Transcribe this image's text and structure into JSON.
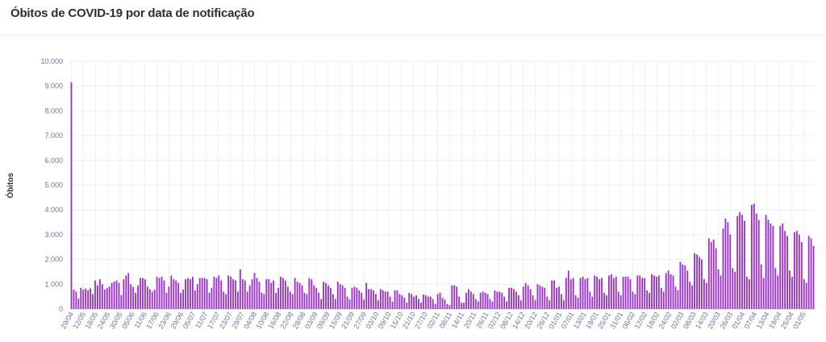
{
  "header": {
    "title": "Óbitos de COVID-19 por data de notificação"
  },
  "colors": {
    "bar": "#9b2fc9",
    "grid": "#eceff4",
    "axis": "#b9c2d0",
    "tick_text": "#6a7a96"
  },
  "chart_data": {
    "type": "bar",
    "title": "Óbitos de COVID-19 por data de notificação",
    "xlabel": "",
    "ylabel": "Óbitos",
    "ylim": [
      0,
      10000
    ],
    "yticks": [
      "0",
      "1.000",
      "2.000",
      "3.000",
      "4.000",
      "5.000",
      "6.000",
      "7.000",
      "8.000",
      "9.000",
      "10.000"
    ],
    "ytick_values": [
      0,
      1000,
      2000,
      3000,
      4000,
      5000,
      6000,
      7000,
      8000,
      9000,
      10000
    ],
    "grid": true,
    "legend": "none",
    "x_tick_labels": [
      "29/04",
      "12/05",
      "18/05",
      "24/05",
      "30/05",
      "05/06",
      "11/06",
      "17/06",
      "23/06",
      "29/06",
      "05/07",
      "11/07",
      "17/07",
      "23/07",
      "29/07",
      "04/08",
      "10/08",
      "16/08",
      "22/08",
      "28/08",
      "03/09",
      "09/09",
      "15/09",
      "21/09",
      "27/09",
      "03/10",
      "09/10",
      "15/10",
      "21/10",
      "27/10",
      "02/11",
      "08/11",
      "14/11",
      "20/11",
      "26/11",
      "02/12",
      "08/12",
      "14/12",
      "20/12",
      "26/12",
      "01/01",
      "07/01",
      "13/01",
      "19/01",
      "25/01",
      "31/01",
      "06/02",
      "12/02",
      "18/02",
      "24/02",
      "02/03",
      "08/03",
      "14/03",
      "20/03",
      "26/03",
      "01/04",
      "07/04",
      "13/04",
      "19/04",
      "25/04",
      "01/05"
    ],
    "values": [
      9150,
      780,
      700,
      420,
      850,
      780,
      820,
      750,
      830,
      600,
      1150,
      950,
      1200,
      1000,
      780,
      850,
      900,
      1050,
      1100,
      1150,
      1050,
      560,
      1200,
      1350,
      1450,
      1000,
      880,
      650,
      950,
      1250,
      1250,
      1200,
      900,
      800,
      700,
      780,
      1300,
      1250,
      1300,
      1150,
      650,
      900,
      1350,
      1200,
      1150,
      1050,
      650,
      780,
      1200,
      1250,
      1200,
      1300,
      750,
      1000,
      1250,
      1250,
      1250,
      1200,
      650,
      850,
      1300,
      1250,
      1350,
      1150,
      700,
      600,
      1350,
      1300,
      1200,
      1150,
      700,
      1600,
      1200,
      1150,
      700,
      950,
      1200,
      1450,
      1250,
      1100,
      650,
      600,
      1200,
      1200,
      1050,
      1150,
      650,
      850,
      1300,
      1250,
      1150,
      900,
      700,
      600,
      1250,
      1100,
      1050,
      950,
      650,
      600,
      1250,
      1200,
      950,
      850,
      650,
      400,
      1100,
      1050,
      950,
      850,
      600,
      400,
      1100,
      1000,
      950,
      850,
      500,
      380,
      850,
      900,
      850,
      750,
      650,
      380,
      1050,
      800,
      800,
      750,
      600,
      350,
      800,
      750,
      700,
      700,
      500,
      300,
      750,
      750,
      600,
      550,
      450,
      250,
      650,
      600,
      500,
      550,
      400,
      250,
      580,
      550,
      500,
      500,
      400,
      200,
      600,
      650,
      450,
      380,
      200,
      150,
      950,
      950,
      900,
      500,
      250,
      250,
      650,
      800,
      700,
      600,
      400,
      300,
      650,
      700,
      650,
      600,
      400,
      300,
      750,
      700,
      700,
      650,
      500,
      300,
      850,
      850,
      800,
      700,
      550,
      350,
      900,
      1050,
      950,
      800,
      550,
      350,
      1000,
      950,
      900,
      850,
      500,
      350,
      1150,
      1150,
      850,
      900,
      600,
      350,
      1250,
      1550,
      1200,
      1250,
      550,
      450,
      1250,
      1300,
      1200,
      1250,
      700,
      500,
      1350,
      1300,
      1200,
      1250,
      650,
      550,
      1350,
      1400,
      1250,
      1300,
      700,
      550,
      1300,
      1300,
      1300,
      1200,
      700,
      600,
      1350,
      1350,
      1250,
      1250,
      750,
      650,
      1400,
      1350,
      1300,
      1350,
      850,
      700,
      1450,
      1550,
      1400,
      1350,
      900,
      750,
      1900,
      1800,
      1750,
      1550,
      1100,
      950,
      2250,
      2200,
      2100,
      2000,
      1200,
      1050,
      2850,
      2700,
      2800,
      2450,
      1600,
      1350,
      3250,
      3650,
      3500,
      3000,
      1650,
      1500,
      3750,
      3900,
      3800,
      3550,
      1300,
      1200,
      4200,
      4250,
      3850,
      3600,
      1800,
      1250,
      3800,
      3600,
      3450,
      3350,
      1650,
      1350,
      3350,
      3450,
      3150,
      2950,
      1550,
      1300,
      3100,
      3150,
      3000,
      2700,
      1200,
      1050,
      2950,
      2850,
      2550
    ]
  }
}
